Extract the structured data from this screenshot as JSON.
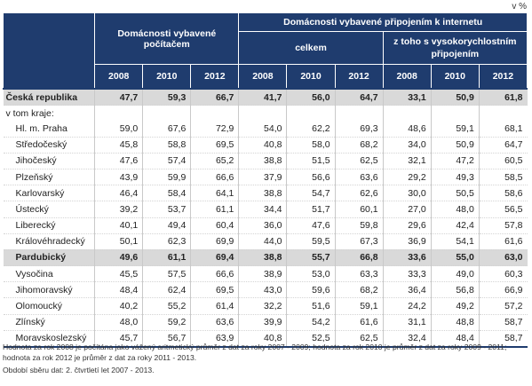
{
  "unit": "v %",
  "header": {
    "group_computer": "Domácnosti vybavené počítačem",
    "group_internet": "Domácnosti vybavené připojením k internetu",
    "sub_total": "celkem",
    "sub_broadband": "z toho s vysokorychlostním připojením",
    "years": [
      "2008",
      "2010",
      "2012",
      "2008",
      "2010",
      "2012",
      "2008",
      "2010",
      "2012"
    ]
  },
  "rows": [
    {
      "name": "Česká republika",
      "values": [
        "47,7",
        "59,3",
        "66,7",
        "41,7",
        "56,0",
        "64,7",
        "33,1",
        "50,9",
        "61,8"
      ]
    },
    {
      "name": "v tom kraje:",
      "values": []
    },
    {
      "name": "Hl. m. Praha",
      "values": [
        "59,0",
        "67,6",
        "72,9",
        "54,0",
        "62,2",
        "69,3",
        "48,6",
        "59,1",
        "68,1"
      ]
    },
    {
      "name": "Středočeský",
      "values": [
        "45,8",
        "58,8",
        "69,5",
        "40,8",
        "58,0",
        "68,2",
        "34,0",
        "50,9",
        "64,7"
      ]
    },
    {
      "name": "Jihočeský",
      "values": [
        "47,6",
        "57,4",
        "65,2",
        "38,8",
        "51,5",
        "62,5",
        "32,1",
        "47,2",
        "60,5"
      ]
    },
    {
      "name": "Plzeňský",
      "values": [
        "43,9",
        "59,9",
        "66,6",
        "37,9",
        "56,6",
        "63,6",
        "29,2",
        "49,3",
        "58,5"
      ]
    },
    {
      "name": "Karlovarský",
      "values": [
        "46,4",
        "58,4",
        "64,1",
        "38,8",
        "54,7",
        "62,6",
        "30,0",
        "50,5",
        "58,6"
      ]
    },
    {
      "name": "Ústecký",
      "values": [
        "39,2",
        "53,7",
        "61,1",
        "34,4",
        "51,7",
        "60,1",
        "27,0",
        "48,0",
        "56,5"
      ]
    },
    {
      "name": "Liberecký",
      "values": [
        "40,1",
        "49,4",
        "60,4",
        "36,0",
        "47,6",
        "59,8",
        "29,6",
        "42,4",
        "57,8"
      ]
    },
    {
      "name": "Královéhradecký",
      "values": [
        "50,1",
        "62,3",
        "69,9",
        "44,0",
        "59,5",
        "67,3",
        "36,9",
        "54,1",
        "61,6"
      ]
    },
    {
      "name": "Pardubický",
      "values": [
        "49,6",
        "61,1",
        "69,4",
        "38,8",
        "55,7",
        "66,8",
        "33,6",
        "55,0",
        "63,0"
      ]
    },
    {
      "name": "Vysočina",
      "values": [
        "45,5",
        "57,5",
        "66,6",
        "38,9",
        "53,0",
        "63,3",
        "33,3",
        "49,0",
        "60,3"
      ]
    },
    {
      "name": "Jihomoravský",
      "values": [
        "48,4",
        "62,4",
        "69,5",
        "43,0",
        "59,6",
        "68,2",
        "36,4",
        "56,8",
        "66,9"
      ]
    },
    {
      "name": "Olomoucký",
      "values": [
        "40,2",
        "55,2",
        "61,4",
        "32,2",
        "51,6",
        "59,1",
        "24,2",
        "49,2",
        "57,2"
      ]
    },
    {
      "name": "Zlínský",
      "values": [
        "48,0",
        "59,2",
        "63,6",
        "39,9",
        "54,2",
        "61,6",
        "31,1",
        "48,8",
        "58,7"
      ]
    },
    {
      "name": "Moravskoslezský",
      "values": [
        "45,7",
        "56,7",
        "63,9",
        "40,8",
        "52,5",
        "62,5",
        "32,4",
        "48,4",
        "58,7"
      ]
    }
  ],
  "notes": {
    "method": "Hodnota za rok 2008 je počítána jako vážený aritmetický průměr z dat za roky 2007 - 2009; hodnota za rok 2010 je průměr z dat za roky 2009 - 2011; hodnota za rok 2012 je průměr z dat za roky 2011 - 2013.",
    "period": "Období sběru dat: 2. čtvrtletí let 2007 - 2013."
  }
}
